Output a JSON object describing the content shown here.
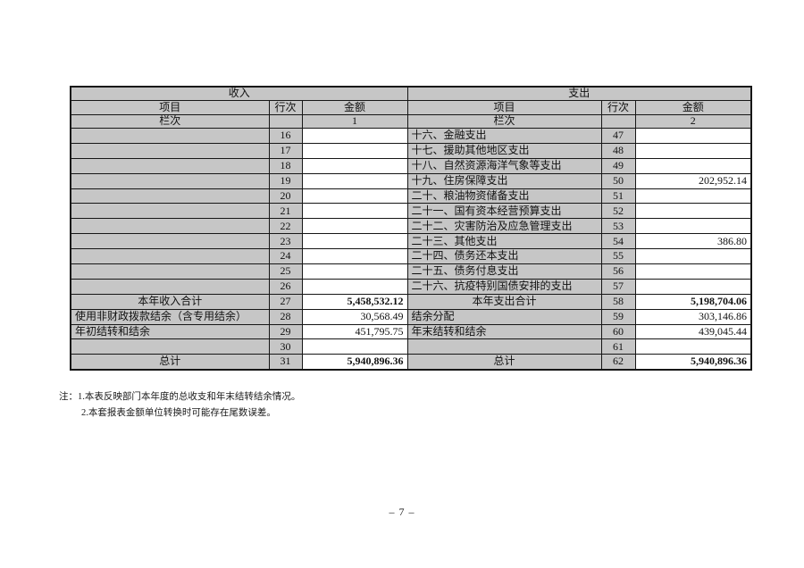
{
  "table": {
    "sections": {
      "income": "收入",
      "expense": "支出"
    },
    "columns": {
      "item": "项目",
      "row_no": "行次",
      "amount": "金额"
    },
    "lane_label": "栏次",
    "income_lane_no": "1",
    "expense_lane_no": "2",
    "rows": [
      {
        "income_item": "",
        "income_row": "16",
        "income_amount": "",
        "income_total": false,
        "expense_item": "十六、金融支出",
        "expense_row": "47",
        "expense_amount": "",
        "expense_total": false
      },
      {
        "income_item": "",
        "income_row": "17",
        "income_amount": "",
        "income_total": false,
        "expense_item": "十七、援助其他地区支出",
        "expense_row": "48",
        "expense_amount": "",
        "expense_total": false
      },
      {
        "income_item": "",
        "income_row": "18",
        "income_amount": "",
        "income_total": false,
        "expense_item": "十八、自然资源海洋气象等支出",
        "expense_row": "49",
        "expense_amount": "",
        "expense_total": false
      },
      {
        "income_item": "",
        "income_row": "19",
        "income_amount": "",
        "income_total": false,
        "expense_item": "十九、住房保障支出",
        "expense_row": "50",
        "expense_amount": "202,952.14",
        "expense_total": false
      },
      {
        "income_item": "",
        "income_row": "20",
        "income_amount": "",
        "income_total": false,
        "expense_item": "二十、粮油物资储备支出",
        "expense_row": "51",
        "expense_amount": "",
        "expense_total": false
      },
      {
        "income_item": "",
        "income_row": "21",
        "income_amount": "",
        "income_total": false,
        "expense_item": "二十一、国有资本经营预算支出",
        "expense_row": "52",
        "expense_amount": "",
        "expense_total": false
      },
      {
        "income_item": "",
        "income_row": "22",
        "income_amount": "",
        "income_total": false,
        "expense_item": "二十二、灾害防治及应急管理支出",
        "expense_row": "53",
        "expense_amount": "",
        "expense_total": false
      },
      {
        "income_item": "",
        "income_row": "23",
        "income_amount": "",
        "income_total": false,
        "expense_item": "二十三、其他支出",
        "expense_row": "54",
        "expense_amount": "386.80",
        "expense_total": false
      },
      {
        "income_item": "",
        "income_row": "24",
        "income_amount": "",
        "income_total": false,
        "expense_item": "二十四、债务还本支出",
        "expense_row": "55",
        "expense_amount": "",
        "expense_total": false
      },
      {
        "income_item": "",
        "income_row": "25",
        "income_amount": "",
        "income_total": false,
        "expense_item": "二十五、债务付息支出",
        "expense_row": "56",
        "expense_amount": "",
        "expense_total": false
      },
      {
        "income_item": "",
        "income_row": "26",
        "income_amount": "",
        "income_total": false,
        "expense_item": "二十六、抗疫特别国债安排的支出",
        "expense_row": "57",
        "expense_amount": "",
        "expense_total": false
      },
      {
        "income_item": "本年收入合计",
        "income_row": "27",
        "income_amount": "5,458,532.12",
        "income_total": true,
        "expense_item": "本年支出合计",
        "expense_row": "58",
        "expense_amount": "5,198,704.06",
        "expense_total": true
      },
      {
        "income_item": "使用非财政拨款结余（含专用结余）",
        "income_row": "28",
        "income_amount": "30,568.49",
        "income_total": false,
        "expense_item": "结余分配",
        "expense_row": "59",
        "expense_amount": "303,146.86",
        "expense_total": false
      },
      {
        "income_item": "年初结转和结余",
        "income_row": "29",
        "income_amount": "451,795.75",
        "income_total": false,
        "expense_item": "年末结转和结余",
        "expense_row": "60",
        "expense_amount": "439,045.44",
        "expense_total": false
      },
      {
        "income_item": "",
        "income_row": "30",
        "income_amount": "",
        "income_total": false,
        "expense_item": "",
        "expense_row": "61",
        "expense_amount": "",
        "expense_total": false
      },
      {
        "income_item": "总计",
        "income_row": "31",
        "income_amount": "5,940,896.36",
        "income_total": true,
        "expense_item": "总计",
        "expense_row": "62",
        "expense_amount": "5,940,896.36",
        "expense_total": true
      }
    ]
  },
  "notes": {
    "label": "注：",
    "line1": "1.本表反映部门本年度的总收支和年末结转结余情况。",
    "line2": "2.本套报表金额单位转换时可能存在尾数误差。"
  },
  "page": {
    "number": "– 7 –"
  }
}
